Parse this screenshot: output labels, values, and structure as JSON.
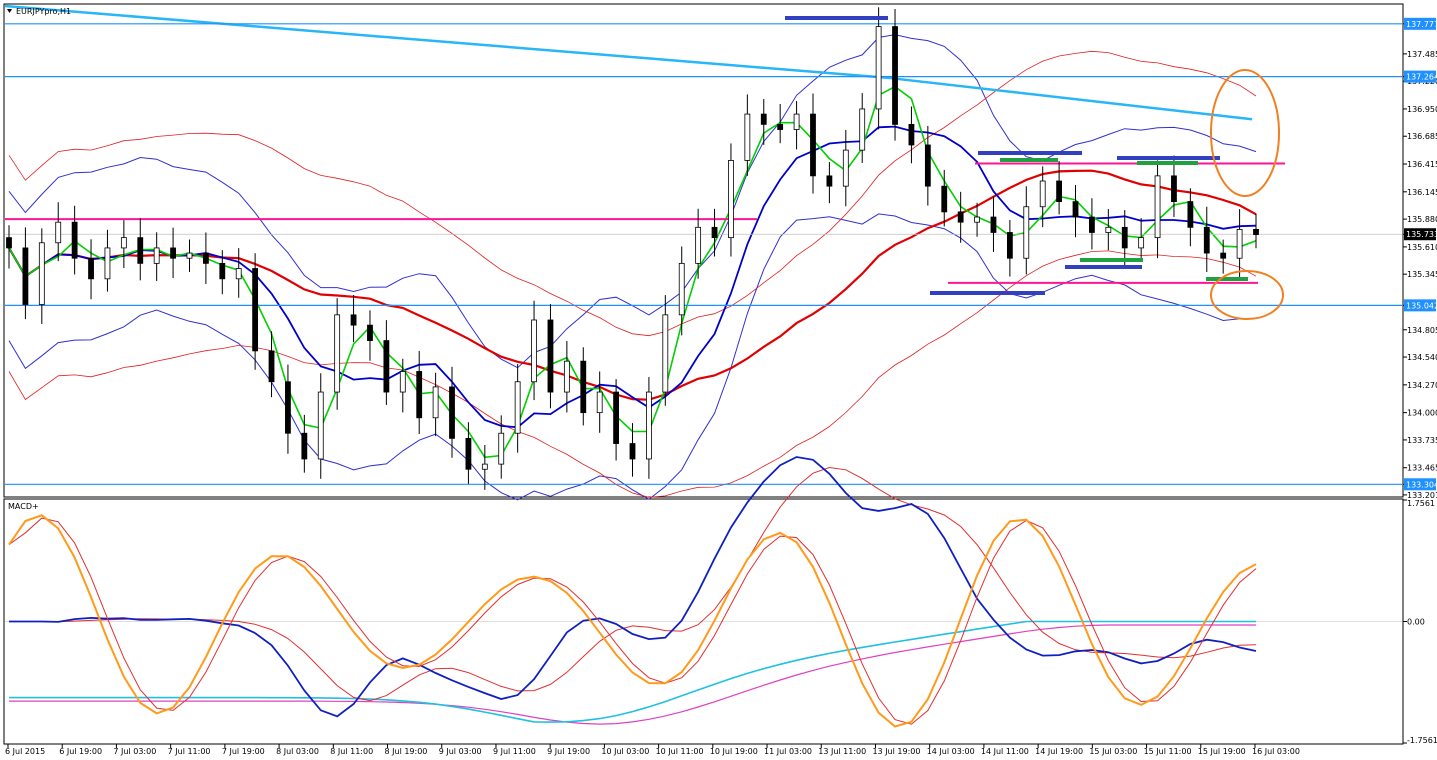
{
  "window": {
    "symbol_label": "EURJPYpro,H1",
    "indicator_label": "MACD+",
    "menu_arrow_icon": "triangle-down-icon"
  },
  "colors": {
    "background": "#ffffff",
    "grid_frame": "#000000",
    "bull_candle": "#ffffff",
    "bear_candle": "#000000",
    "ma_fast": "#00d000",
    "ma_mid": "#0000cc",
    "ma_slow": "#e00000",
    "ma_long": "#29b6f6",
    "bollinger_blue": "#3030d0",
    "bollinger_red": "#e02020",
    "level_line": "#1e90ff",
    "magenta_line": "#ff1493",
    "annotation_orange": "#f08020",
    "annotation_blue": "#3040c0",
    "annotation_green": "#20a040",
    "macd_orange": "#ff9a1a",
    "macd_red": "#e03030",
    "macd_blue": "#1020c0",
    "macd_cyan": "#20c0e0",
    "macd_pink": "#e040c0"
  },
  "chart_data": [
    {
      "type": "candlestick",
      "title": "EURJPYpro,H1",
      "ylim": [
        133.2,
        137.95
      ],
      "price_ticks": [
        "137.777",
        "137.485",
        "137.220",
        "137.264",
        "136.950",
        "136.685",
        "136.415",
        "136.145",
        "135.880",
        "135.733",
        "135.610",
        "135.345",
        "135.042",
        "134.805",
        "134.540",
        "134.270",
        "134.000",
        "133.735",
        "133.465",
        "133.304",
        "133.201"
      ],
      "highlighted_levels": [
        {
          "value": 137.777,
          "label": "137.777"
        },
        {
          "value": 137.264,
          "label": "137.264"
        },
        {
          "value": 135.042,
          "label": "135.042"
        },
        {
          "value": 133.304,
          "label": "133.304"
        }
      ],
      "current_price": {
        "value": 135.733,
        "label": "135.733"
      },
      "magenta_levels": [
        135.88,
        136.42,
        135.26
      ],
      "x_labels": [
        "6 Jul 2015",
        "6 Jul 19:00",
        "7 Jul 03:00",
        "7 Jul 11:00",
        "7 Jul 19:00",
        "8 Jul 03:00",
        "8 Jul 11:00",
        "8 Jul 19:00",
        "9 Jul 03:00",
        "9 Jul 11:00",
        "9 Jul 19:00",
        "10 Jul 03:00",
        "10 Jul 11:00",
        "10 Jul 19:00",
        "11 Jul 03:00",
        "13 Jul 11:00",
        "13 Jul 19:00",
        "14 Jul 03:00",
        "14 Jul 11:00",
        "14 Jul 19:00",
        "15 Jul 03:00",
        "15 Jul 11:00",
        "15 Jul 19:00",
        "16 Jul 03:00"
      ],
      "close_path": [
        135.6,
        135.05,
        135.65,
        135.85,
        135.5,
        135.3,
        135.6,
        135.7,
        135.45,
        135.6,
        135.5,
        135.55,
        135.45,
        135.3,
        135.4,
        134.6,
        134.3,
        133.8,
        133.55,
        134.2,
        134.95,
        134.85,
        134.7,
        134.2,
        134.4,
        133.95,
        134.25,
        133.75,
        133.45,
        133.5,
        133.8,
        134.3,
        134.9,
        134.2,
        134.5,
        134.0,
        134.2,
        133.7,
        133.55,
        134.2,
        134.95,
        135.45,
        135.8,
        135.7,
        136.45,
        136.9,
        136.8,
        136.75,
        136.9,
        136.3,
        136.2,
        136.55,
        136.95,
        137.75,
        136.8,
        136.6,
        136.2,
        135.95,
        135.85,
        135.9,
        135.75,
        135.5,
        136.0,
        136.25,
        136.05,
        135.9,
        135.75,
        135.8,
        135.6,
        135.7,
        136.3,
        136.05,
        135.8,
        135.55,
        135.5,
        135.78,
        135.73
      ],
      "indicator": {
        "name": "MACD+",
        "ylim": [
          -1.7561,
          1.7561
        ],
        "ticks": [
          "1.7561",
          "0.00",
          "-1.7561"
        ]
      }
    }
  ]
}
